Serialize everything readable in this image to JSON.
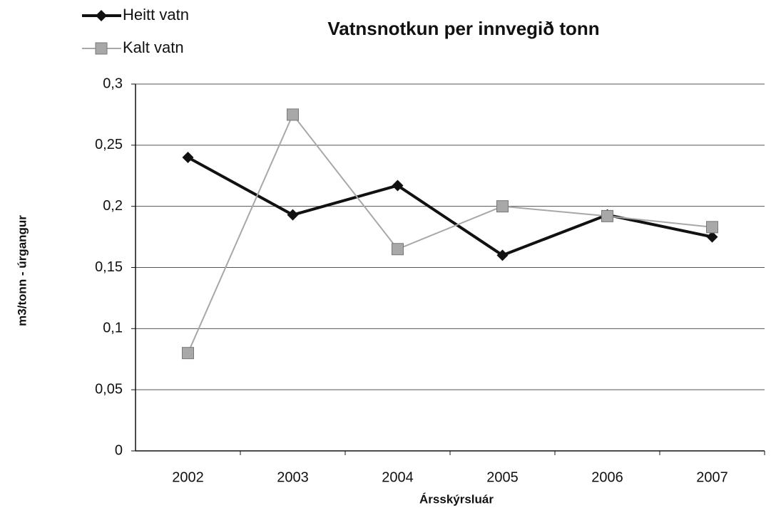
{
  "chart_data": {
    "type": "line",
    "title": "Vatnsnotkun per innvegið tonn",
    "x_label": "Árssk​ýrsluár",
    "y_label": "m3/tonn - úrgangur",
    "categories": [
      "2002",
      "2003",
      "2004",
      "2005",
      "2006",
      "2007"
    ],
    "series": [
      {
        "name": "Heitt vatn",
        "color": "#111111",
        "marker": "diamond",
        "values": [
          0.24,
          0.193,
          0.217,
          0.16,
          0.193,
          0.175
        ]
      },
      {
        "name": "Kalt vatn",
        "color": "#a8a8a8",
        "marker": "square",
        "values": [
          0.08,
          0.275,
          0.165,
          0.2,
          0.192,
          0.183
        ]
      }
    ],
    "ylim": [
      0,
      0.3
    ],
    "yticks": [
      0,
      {
        "value": 0.05,
        "label": "0,05"
      },
      {
        "value": 0.1,
        "label": "0,1"
      },
      {
        "value": 0.15,
        "label": "0,15"
      },
      {
        "value": 0.2,
        "label": "0,2"
      },
      {
        "value": 0.25,
        "label": "0,25"
      },
      {
        "value": 0.3,
        "label": "0,3"
      }
    ],
    "grid": true,
    "legend": "top-left"
  }
}
